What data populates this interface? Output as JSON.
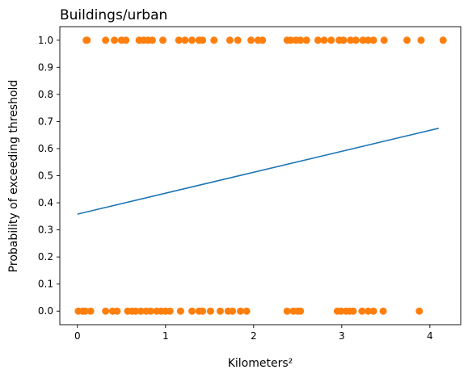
{
  "chart_data": {
    "type": "scatter",
    "title": "Buildings/urban",
    "xlabel": "Kilometers²",
    "ylabel": "Probability of exceeding threshold",
    "xlim": [
      -0.2,
      4.35
    ],
    "ylim": [
      -0.05,
      1.05
    ],
    "x_ticks": [
      0,
      1,
      2,
      3,
      4
    ],
    "x_tick_labels": [
      "0",
      "1",
      "2",
      "3",
      "4"
    ],
    "y_ticks": [
      0.0,
      0.1,
      0.2,
      0.3,
      0.4,
      0.5,
      0.6,
      0.7,
      0.8,
      0.9,
      1.0
    ],
    "y_tick_labels": [
      "0.0",
      "0.1",
      "0.2",
      "0.3",
      "0.4",
      "0.5",
      "0.6",
      "0.7",
      "0.8",
      "0.9",
      "1.0"
    ],
    "grid": false,
    "legend": "none",
    "series": [
      {
        "type": "scatter",
        "color": "#ff7f0e",
        "points": [
          [
            0.1,
            1
          ],
          [
            0.11,
            1
          ],
          [
            0.32,
            1
          ],
          [
            0.42,
            1
          ],
          [
            0.5,
            1
          ],
          [
            0.55,
            1
          ],
          [
            0.7,
            1
          ],
          [
            0.75,
            1
          ],
          [
            0.8,
            1
          ],
          [
            0.85,
            1
          ],
          [
            0.97,
            1
          ],
          [
            1.15,
            1
          ],
          [
            1.22,
            1
          ],
          [
            1.3,
            1
          ],
          [
            1.38,
            1
          ],
          [
            1.42,
            1
          ],
          [
            1.55,
            1
          ],
          [
            1.73,
            1
          ],
          [
            1.82,
            1
          ],
          [
            1.97,
            1
          ],
          [
            2.05,
            1
          ],
          [
            2.1,
            1
          ],
          [
            2.38,
            1
          ],
          [
            2.42,
            1
          ],
          [
            2.48,
            1
          ],
          [
            2.53,
            1
          ],
          [
            2.6,
            1
          ],
          [
            2.73,
            1
          ],
          [
            2.8,
            1
          ],
          [
            2.88,
            1
          ],
          [
            2.97,
            1
          ],
          [
            3.02,
            1
          ],
          [
            3.1,
            1
          ],
          [
            3.16,
            1
          ],
          [
            3.24,
            1
          ],
          [
            3.3,
            1
          ],
          [
            3.36,
            1
          ],
          [
            3.48,
            1
          ],
          [
            3.74,
            1
          ],
          [
            3.9,
            1
          ],
          [
            4.15,
            1
          ],
          [
            0.01,
            0
          ],
          [
            0.06,
            0
          ],
          [
            0.09,
            0
          ],
          [
            0.15,
            0
          ],
          [
            0.32,
            0
          ],
          [
            0.4,
            0
          ],
          [
            0.45,
            0
          ],
          [
            0.57,
            0
          ],
          [
            0.62,
            0
          ],
          [
            0.66,
            0
          ],
          [
            0.72,
            0
          ],
          [
            0.78,
            0
          ],
          [
            0.83,
            0
          ],
          [
            0.9,
            0
          ],
          [
            0.95,
            0
          ],
          [
            1.0,
            0
          ],
          [
            1.05,
            0
          ],
          [
            1.17,
            0
          ],
          [
            1.3,
            0
          ],
          [
            1.38,
            0
          ],
          [
            1.42,
            0
          ],
          [
            1.51,
            0
          ],
          [
            1.62,
            0
          ],
          [
            1.71,
            0
          ],
          [
            1.76,
            0
          ],
          [
            1.85,
            0
          ],
          [
            1.92,
            0
          ],
          [
            2.38,
            0
          ],
          [
            2.45,
            0
          ],
          [
            2.5,
            0
          ],
          [
            2.53,
            0
          ],
          [
            2.95,
            0
          ],
          [
            2.99,
            0
          ],
          [
            3.05,
            0
          ],
          [
            3.09,
            0
          ],
          [
            3.13,
            0
          ],
          [
            3.23,
            0
          ],
          [
            3.3,
            0
          ],
          [
            3.36,
            0
          ],
          [
            3.47,
            0
          ],
          [
            3.88,
            0
          ]
        ]
      },
      {
        "type": "line",
        "color": "#1f77b4",
        "points": [
          [
            0.0,
            0.358
          ],
          [
            4.1,
            0.675
          ]
        ]
      }
    ]
  }
}
